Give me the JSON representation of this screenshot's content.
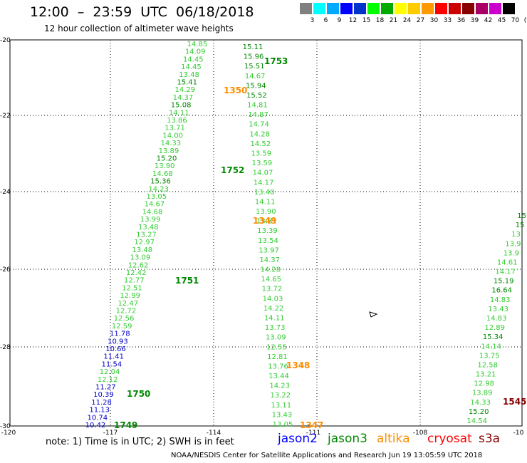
{
  "title": "12:00  –  23:59  UTC  06/18/2018",
  "subtitle": "12 hour collection of altimeter wave heights",
  "scale": {
    "labels": [
      "3",
      "6",
      "9",
      "12",
      "15",
      "18",
      "21",
      "24",
      "27",
      "30",
      "33",
      "36",
      "39",
      "42",
      "45",
      "70",
      "(ft)"
    ],
    "colors": [
      "#808080",
      "#00ffff",
      "#00aaff",
      "#0000ff",
      "#0033cc",
      "#00ff00",
      "#00aa00",
      "#ffff00",
      "#ffcc00",
      "#ff9900",
      "#ff0000",
      "#cc0000",
      "#880000",
      "#aa0066",
      "#cc00cc",
      "#000000"
    ]
  },
  "axes": {
    "lon_labels": [
      "-120",
      "-117",
      "-114",
      "-111",
      "-108",
      "-10"
    ],
    "lat_labels": [
      "-20",
      "-22",
      "-24",
      "-26",
      "-28",
      "-30"
    ]
  },
  "tracks": {
    "track1": {
      "values": [
        "14.85",
        "14.09",
        "14.45",
        "14.45",
        "13.48",
        "15.41",
        "14.29",
        "14.37",
        "15.08",
        "14.11",
        "13.86",
        "13.71",
        "14.00",
        "14.33",
        "13.89",
        "15.20",
        "13.90",
        "14.68",
        "15.36",
        "14.23",
        "13.05",
        "14.67",
        "14.68",
        "13.99",
        "13.48",
        "13.27",
        "12.97",
        "13.48",
        "13.09",
        "12.62",
        "12.42",
        "12.77",
        "12.51",
        "12.99",
        "12.47",
        "12.72",
        "12.56",
        "12.59",
        "11.78",
        "10.93",
        "10.66",
        "11.41",
        "11.54",
        "12.04",
        "12.12",
        "11.27",
        "10.39",
        "11.28",
        "11.13",
        "10.74",
        "10.42"
      ],
      "time_labels": [
        {
          "text": "1751",
          "color": "#008800"
        },
        {
          "text": "1750",
          "color": "#008800"
        },
        {
          "text": "1749",
          "color": "#008800"
        }
      ]
    },
    "track2": {
      "values": [
        "15.11",
        "15.96",
        "15.51",
        "14.67",
        "15.94",
        "15.52",
        "14.81",
        "14.87",
        "14.74",
        "14.28",
        "14.52",
        "13.59",
        "13.59",
        "14.07",
        "14.17",
        "13.40",
        "14.11",
        "13.90",
        "13.81",
        "13.39",
        "13.54",
        "13.97",
        "14.37",
        "14.28",
        "14.65",
        "13.72",
        "14.03",
        "14.22",
        "14.11",
        "13.73",
        "13.09",
        "12.55",
        "12.81",
        "13.76",
        "13.44",
        "14.23",
        "13.22",
        "13.11",
        "13.43",
        "13.05"
      ],
      "time_labels": [
        {
          "text": "1753",
          "color": "#008800"
        },
        {
          "text": "1350",
          "color": "#ff8c00"
        },
        {
          "text": "1752",
          "color": "#008800"
        },
        {
          "text": "1349",
          "color": "#ff8c00"
        },
        {
          "text": "1348",
          "color": "#ff8c00"
        },
        {
          "text": "1347",
          "color": "#ff8c00"
        }
      ]
    },
    "track3": {
      "values": [
        "15",
        "15",
        "13.",
        "13.9",
        "13.9",
        "14.61",
        "14.17",
        "15.19",
        "16.64",
        "14.83",
        "13.43",
        "14.83",
        "12.89",
        "15.34",
        "14.14",
        "13.75",
        "12.58",
        "13.21",
        "12.98",
        "13.89",
        "14.33",
        "15.20",
        "14.54"
      ],
      "time_labels": [
        {
          "text": "1545",
          "color": "#880000"
        }
      ]
    }
  },
  "note": "note: 1) Time is in UTC; 2) SWH is in feet",
  "satellites": [
    {
      "name": "jason2",
      "color": "#0000ff"
    },
    {
      "name": "jason3",
      "color": "#008800"
    },
    {
      "name": "altika",
      "color": "#ff8c00"
    },
    {
      "name": "cryosat",
      "color": "#ff0000"
    },
    {
      "name": "s3a",
      "color": "#880000"
    }
  ],
  "credit": "NOAA/NESDIS Center for Satellite Applications and Research     Jun 19 13:05:59 UTC 2018"
}
